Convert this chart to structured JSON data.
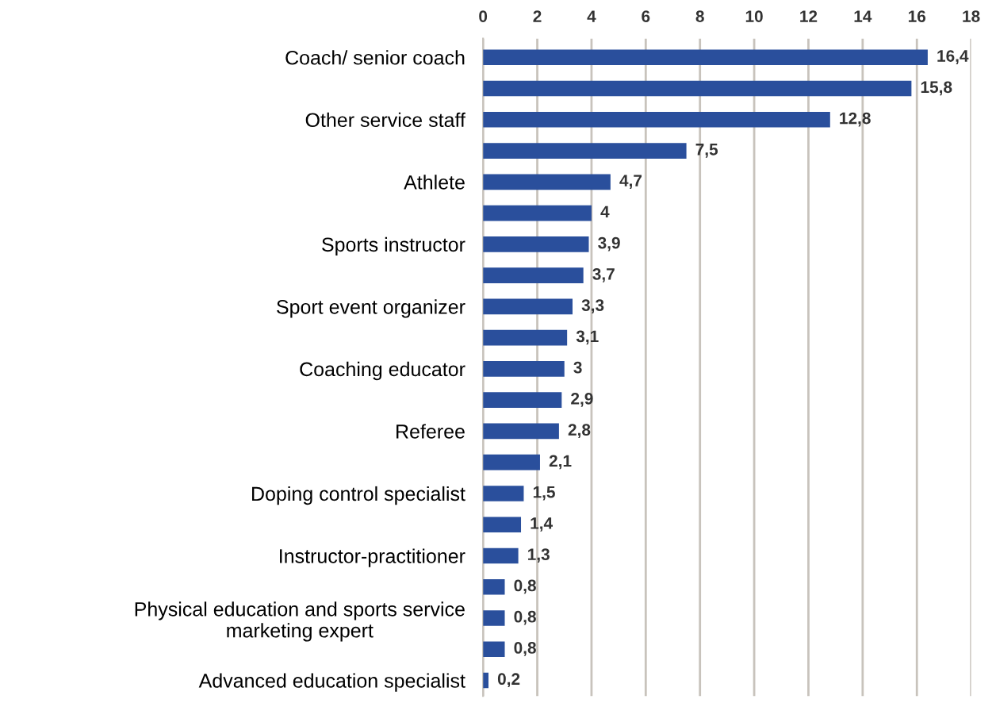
{
  "chart_data": {
    "type": "bar",
    "orientation": "horizontal",
    "categories": [
      "Coach/ senior coach",
      null,
      "Other service staff",
      null,
      "Athlete",
      null,
      "Sports instructor",
      null,
      "Sport event organizer",
      null,
      "Coaching educator",
      null,
      "Referee",
      null,
      "Doping control specialist",
      null,
      "Instructor-practitioner",
      null,
      "Physical education and sports service\nmarketing expert",
      null,
      "Advanced education specialist"
    ],
    "values": [
      16.4,
      15.8,
      12.8,
      7.5,
      4.7,
      4,
      3.9,
      3.7,
      3.3,
      3.1,
      3,
      2.9,
      2.8,
      2.1,
      1.5,
      1.4,
      1.3,
      0.8,
      0.8,
      0.8,
      0.2
    ],
    "value_labels": [
      "16,4",
      "15,8",
      "12,8",
      "7,5",
      "4,7",
      "4",
      "3,9",
      "3,7",
      "3,3",
      "3,1",
      "3",
      "2,9",
      "2,8",
      "2,1",
      "1,5",
      "1,4",
      "1,3",
      "0,8",
      "0,8",
      "0,8",
      "0,2"
    ],
    "color": "#2a4f9c",
    "xlim": [
      0,
      18
    ],
    "xticks": [
      0,
      2,
      4,
      6,
      8,
      10,
      12,
      14,
      16,
      18
    ],
    "grid": "x",
    "legend": false
  }
}
